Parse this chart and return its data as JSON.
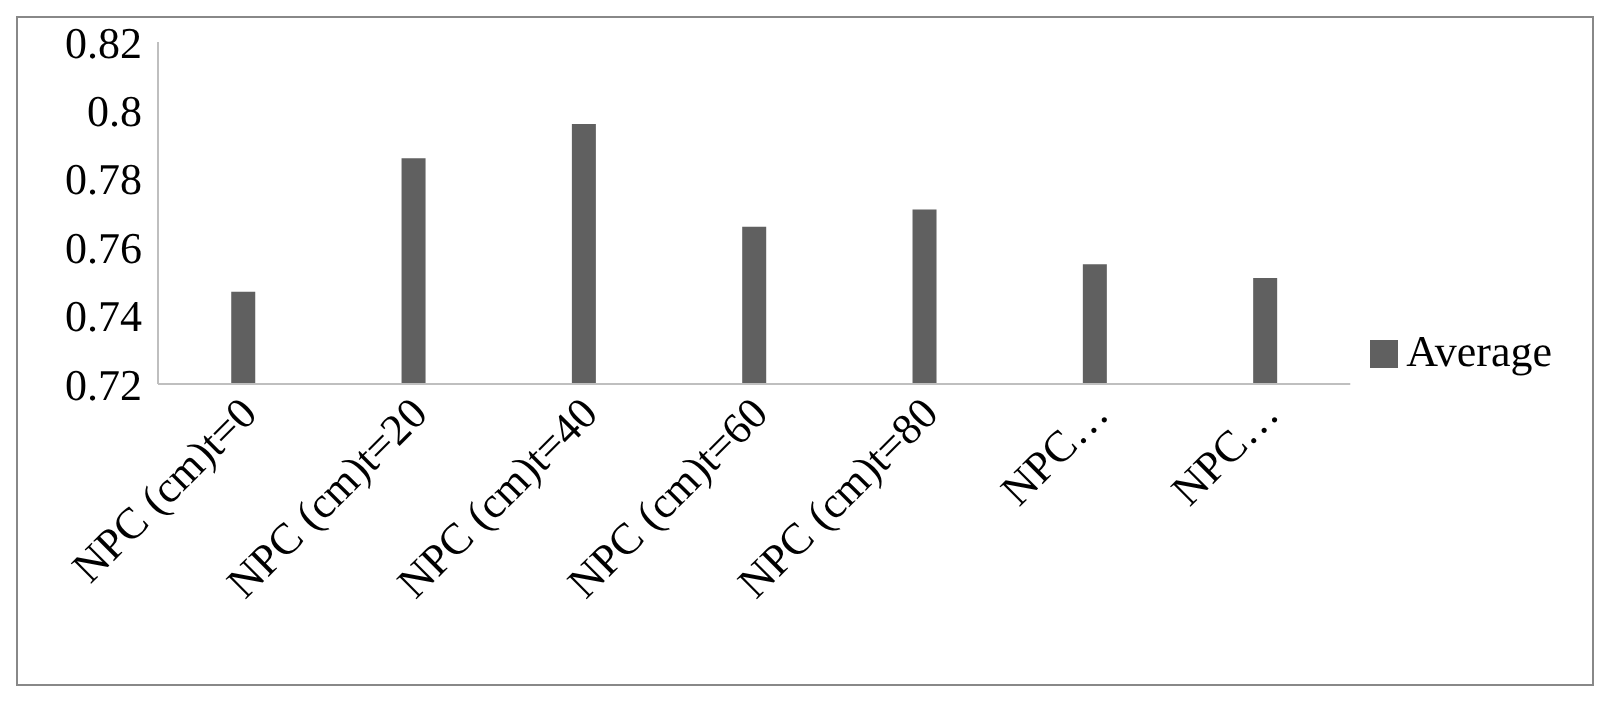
{
  "chart_data": {
    "type": "bar",
    "categories": [
      "NPC (cm)t=0",
      "NPC (cm)t=20",
      "NPC (cm)t=40",
      "NPC (cm)t=60",
      "NPC (cm)t=80",
      "NPC…",
      "NPC…"
    ],
    "series": [
      {
        "name": "Average",
        "color": "#606060",
        "values": [
          0.747,
          0.786,
          0.796,
          0.766,
          0.771,
          0.755,
          0.751
        ]
      }
    ],
    "ylim": [
      0.72,
      0.82
    ],
    "yticks": [
      0.72,
      0.74,
      0.76,
      0.78,
      0.8,
      0.82
    ],
    "grid": false,
    "legend": "right"
  }
}
